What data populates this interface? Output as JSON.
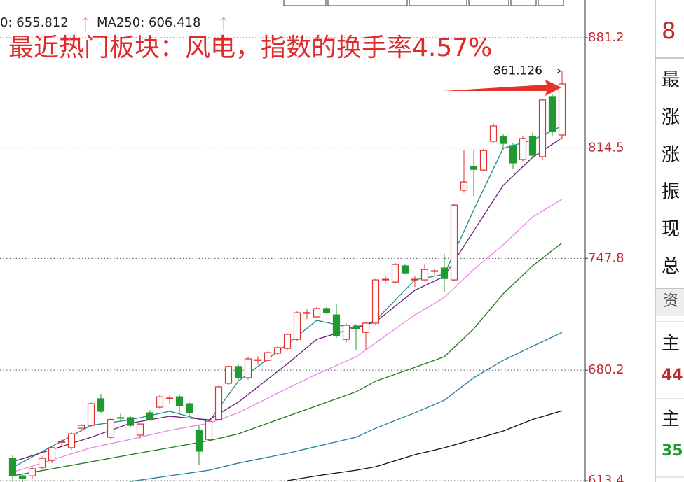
{
  "chart_data": {
    "type": "candlestick",
    "title": "最近热门板块：风电，指数的换手率4.57%",
    "header_labels": [
      "0: 655.812",
      "MA250: 606.418"
    ],
    "open": [
      626.9,
      616.3,
      616.3,
      621.4,
      625.6,
      636.6,
      633.3,
      645.1,
      646.8,
      662.9,
      639.6,
      651.5,
      651.5,
      640.9,
      654.4,
      657.8,
      662.9,
      664.1,
      659.9,
      643.8,
      638.3,
      650.4,
      672.2,
      682.4,
      675.6,
      686.1,
      686.1,
      690.4,
      693.3,
      698.8,
      714.5,
      712.4,
      717.5,
      713.6,
      698.8,
      706.9,
      703.0,
      708.6,
      734.8,
      733.5,
      743.3,
      734.8,
      734.8,
      739.9,
      742.0,
      734.8,
      789.0,
      803.4,
      801.2,
      818.6,
      821.6,
      816.0,
      807.6,
      821.6,
      809.3,
      845.7,
      822.4
    ],
    "high": [
      629.1,
      617.0,
      621.4,
      628.0,
      634.0,
      638.3,
      642.5,
      647.6,
      660.5,
      665.8,
      651.0,
      654.0,
      652.5,
      648.0,
      656.0,
      665.0,
      665.5,
      665.8,
      661.0,
      646.8,
      650.0,
      671.0,
      683.0,
      683.5,
      688.0,
      688.5,
      691.5,
      694.5,
      702.5,
      716.0,
      717.0,
      718.5,
      718.3,
      720.0,
      708.5,
      708.0,
      709.5,
      735.5,
      737.0,
      745.0,
      744.0,
      737.0,
      744.0,
      741.5,
      750.5,
      781.0,
      813.0,
      813.0,
      814.0,
      829.5,
      823.0,
      817.5,
      822.0,
      824.0,
      844.5,
      847.0,
      861.126
    ],
    "low": [
      612.6,
      612.6,
      614.5,
      620.6,
      624.0,
      634.5,
      632.0,
      644.0,
      646.0,
      654.4,
      638.3,
      649.0,
      645.5,
      639.0,
      649.5,
      657.0,
      660.0,
      654.4,
      652.0,
      622.7,
      637.0,
      649.5,
      671.0,
      674.0,
      674.5,
      683.5,
      685.5,
      689.5,
      692.5,
      698.0,
      711.0,
      711.5,
      714.0,
      699.7,
      697.0,
      692.5,
      692.5,
      707.5,
      732.5,
      732.5,
      738.2,
      730.5,
      733.8,
      738.0,
      727.2,
      734.0,
      787.5,
      785.5,
      800.5,
      817.5,
      813.5,
      801.6,
      806.5,
      808.5,
      807.5,
      821.5,
      820.3
    ],
    "close": [
      616.3,
      614.5,
      620.6,
      626.9,
      633.3,
      637.0,
      641.7,
      646.8,
      659.9,
      655.3,
      650.4,
      651.1,
      646.8,
      647.6,
      650.4,
      664.1,
      663.3,
      658.6,
      654.4,
      631.2,
      649.3,
      670.1,
      682.4,
      675.6,
      687.0,
      686.5,
      690.8,
      693.8,
      701.8,
      714.9,
      715.0,
      717.5,
      714.9,
      701.0,
      707.3,
      705.2,
      708.6,
      734.8,
      735.2,
      744.1,
      739.0,
      735.2,
      741.1,
      740.3,
      735.6,
      780.0,
      794.0,
      801.6,
      813.0,
      827.9,
      817.3,
      805.5,
      820.3,
      810.1,
      843.6,
      824.5,
      853.3
    ],
    "up_color": "#e3302b",
    "down_color": "#1e9a2e",
    "ylim": [
      612.55,
      904.05
    ],
    "yticks": [
      613.4,
      680.2,
      747.8,
      814.5,
      881.2
    ],
    "grid": true,
    "moving_averages": [
      {
        "color": "#1f8c8c",
        "x": [
          0,
          8,
          12,
          16,
          20,
          23,
          28,
          31,
          35,
          37,
          41,
          44,
          47,
          50,
          53,
          56
        ],
        "values": [
          621.4,
          646.8,
          650.2,
          655.3,
          649.0,
          673.5,
          695.9,
          710.3,
          705.2,
          710.3,
          734.8,
          738.2,
          777.1,
          814.4,
          819.4,
          827.9
        ]
      },
      {
        "color": "#6a1b78",
        "x": [
          0,
          8,
          12,
          16,
          20,
          23,
          28,
          31,
          35,
          37,
          41,
          44,
          47,
          50,
          53,
          56
        ],
        "values": [
          624.8,
          639.6,
          648.1,
          652.3,
          650.2,
          660.8,
          684.0,
          698.8,
          706.0,
          709.4,
          728.5,
          736.9,
          764.4,
          791.9,
          808.9,
          820.7
        ]
      },
      {
        "color": "#ee82ee",
        "x": [
          0,
          8,
          12,
          16,
          20,
          23,
          28,
          31,
          35,
          37,
          41,
          44,
          47,
          50,
          53,
          56
        ],
        "values": [
          618.5,
          633.3,
          638.3,
          643.8,
          648.1,
          654.4,
          669.2,
          677.7,
          688.3,
          696.7,
          713.6,
          724.2,
          741.1,
          756.0,
          772.9,
          783.5
        ]
      },
      {
        "color": "#1c7a1c",
        "x": [
          0,
          8,
          12,
          16,
          20,
          23,
          28,
          31,
          35,
          37,
          41,
          44,
          47,
          50,
          53,
          56
        ],
        "values": [
          616.3,
          624.8,
          629.1,
          633.3,
          637.5,
          641.7,
          652.3,
          658.6,
          667.1,
          673.5,
          681.9,
          688.3,
          705.2,
          726.4,
          743.3,
          757.2
        ]
      },
      {
        "color": "#1f7f9f",
        "x": [
          12,
          16,
          20,
          23,
          28,
          31,
          35,
          37,
          41,
          44,
          47,
          50,
          53,
          56
        ],
        "values": [
          612.9,
          616.3,
          619.7,
          624.0,
          629.9,
          634.1,
          639.6,
          645.1,
          654.4,
          662.0,
          675.6,
          686.1,
          694.6,
          703.0
        ]
      },
      {
        "color": "#111111",
        "x": [
          28,
          31,
          35,
          37,
          41,
          44,
          47,
          50,
          53,
          56
        ],
        "values": [
          613.4,
          616.3,
          619.7,
          621.8,
          629.1,
          633.3,
          638.3,
          643.4,
          650.4,
          655.6
        ]
      }
    ]
  },
  "side_panel": {
    "top": "8",
    "rows": [
      "最",
      "涨",
      "涨",
      "振",
      "现",
      "总"
    ],
    "section": "资",
    "items": [
      {
        "label": "主",
        "value": "44"
      },
      {
        "label": "主",
        "value": "35"
      }
    ]
  }
}
